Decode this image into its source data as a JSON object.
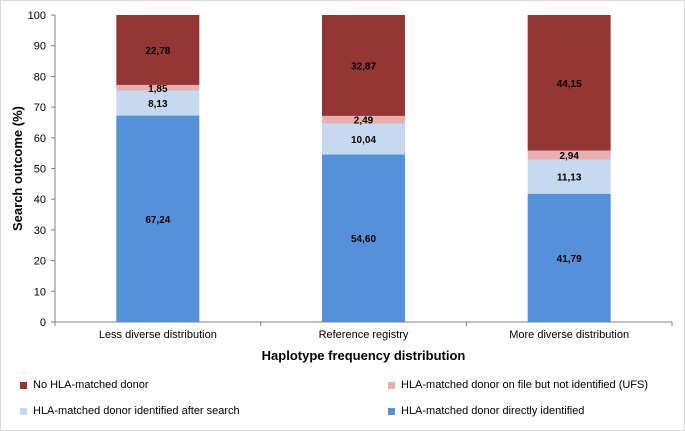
{
  "chart_data": {
    "type": "stacked-bar",
    "title": "",
    "xlabel": "Haplotype frequency distribution",
    "ylabel": "Search outcome (%)",
    "ylim": [
      0,
      100
    ],
    "yticks": [
      0,
      10,
      20,
      30,
      40,
      50,
      60,
      70,
      80,
      90,
      100
    ],
    "categories": [
      "Less diverse distribution",
      "Reference registry",
      "More diverse distribution"
    ],
    "series": [
      {
        "name": "HLA-matched donor directly identified",
        "color": "#5590d8",
        "values": [
          67.24,
          54.6,
          41.79
        ],
        "labels": [
          "67,24",
          "54,60",
          "41,79"
        ]
      },
      {
        "name": "HLA-matched donor identified after search",
        "color": "#c6d9f0",
        "values": [
          8.13,
          10.04,
          11.13
        ],
        "labels": [
          "8,13",
          "10,04",
          "11,13"
        ]
      },
      {
        "name": "HLA-matched donor on file but not identified (UFS)",
        "color": "#e6b0b0",
        "values": [
          1.85,
          2.49,
          2.94
        ],
        "labels": [
          "1,85",
          "2,49",
          "2,94"
        ]
      },
      {
        "name": "No HLA-matched donor",
        "color": "#943634",
        "values": [
          22.78,
          32.87,
          44.15
        ],
        "labels": [
          "22,78",
          "32,87",
          "44,15"
        ]
      }
    ],
    "legend": [
      {
        "name": "No HLA-matched donor",
        "color": "#943634"
      },
      {
        "name": "HLA-matched donor on file but not identified (UFS)",
        "color": "#e6b0b0"
      },
      {
        "name": "HLA-matched donor identified after search",
        "color": "#c6d9f0"
      },
      {
        "name": "HLA-matched donor directly identified",
        "color": "#5590d8"
      }
    ],
    "legend_position": "bottom",
    "grid": false
  }
}
